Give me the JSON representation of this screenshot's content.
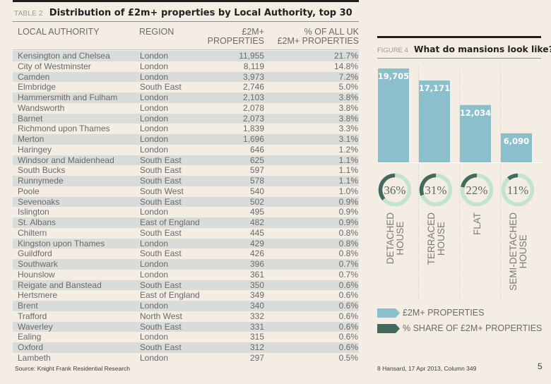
{
  "table": {
    "label": "TABLE 2",
    "title": "Distribution of £2m+ properties by Local Authority, top 30",
    "headers": {
      "local_authority": "LOCAL AUTHORITY",
      "region": "REGION",
      "count_line1": "£2M+",
      "count_line2": "PROPERTIES",
      "pct_line1": "% OF ALL UK",
      "pct_line2": "£2M+ PROPERTIES"
    },
    "rows": [
      {
        "authority": "Kensington and Chelsea",
        "region": "London",
        "count": "11,955",
        "pct": "21.7%"
      },
      {
        "authority": "City of Westminster",
        "region": "London",
        "count": "8,119",
        "pct": "14.8%"
      },
      {
        "authority": "Camden",
        "region": "London",
        "count": "3,973",
        "pct": "7.2%"
      },
      {
        "authority": "Elmbridge",
        "region": "South East",
        "count": "2,746",
        "pct": "5.0%"
      },
      {
        "authority": "Hammersmith and Fulham",
        "region": "London",
        "count": "2,103",
        "pct": "3.8%"
      },
      {
        "authority": "Wandsworth",
        "region": "London",
        "count": "2,078",
        "pct": "3.8%"
      },
      {
        "authority": "Barnet",
        "region": "London",
        "count": "2,073",
        "pct": "3.8%"
      },
      {
        "authority": "Richmond upon Thames",
        "region": "London",
        "count": "1,839",
        "pct": "3.3%"
      },
      {
        "authority": "Merton",
        "region": "London",
        "count": "1,696",
        "pct": "3.1%"
      },
      {
        "authority": "Haringey",
        "region": "London",
        "count": "646",
        "pct": "1.2%"
      },
      {
        "authority": "Windsor and Maidenhead",
        "region": "South East",
        "count": "625",
        "pct": "1.1%"
      },
      {
        "authority": "South Bucks",
        "region": "South East",
        "count": "597",
        "pct": "1.1%"
      },
      {
        "authority": "Runnymede",
        "region": "South East",
        "count": "578",
        "pct": "1.1%"
      },
      {
        "authority": "Poole",
        "region": "South West",
        "count": "540",
        "pct": "1.0%"
      },
      {
        "authority": "Sevenoaks",
        "region": "South East",
        "count": "502",
        "pct": "0.9%"
      },
      {
        "authority": "Islington",
        "region": "London",
        "count": "495",
        "pct": "0.9%"
      },
      {
        "authority": "St. Albans",
        "region": "East of England",
        "count": "482",
        "pct": "0.9%"
      },
      {
        "authority": "Chiltern",
        "region": "South East",
        "count": "445",
        "pct": "0.8%"
      },
      {
        "authority": "Kingston upon Thames",
        "region": "London",
        "count": "429",
        "pct": "0.8%"
      },
      {
        "authority": "Guildford",
        "region": "South East",
        "count": "426",
        "pct": "0.8%"
      },
      {
        "authority": "Southwark",
        "region": "London",
        "count": "396",
        "pct": "0.7%"
      },
      {
        "authority": "Hounslow",
        "region": "London",
        "count": "361",
        "pct": "0.7%"
      },
      {
        "authority": "Reigate and Banstead",
        "region": "South East",
        "count": "350",
        "pct": "0.6%"
      },
      {
        "authority": "Hertsmere",
        "region": "East of England",
        "count": "349",
        "pct": "0.6%"
      },
      {
        "authority": "Brent",
        "region": "London",
        "count": "340",
        "pct": "0.6%"
      },
      {
        "authority": "Trafford",
        "region": "North West",
        "count": "332",
        "pct": "0.6%"
      },
      {
        "authority": "Waverley",
        "region": "South East",
        "count": "331",
        "pct": "0.6%"
      },
      {
        "authority": "Ealing",
        "region": "London",
        "count": "315",
        "pct": "0.6%"
      },
      {
        "authority": "Oxford",
        "region": "South East",
        "count": "312",
        "pct": "0.6%"
      },
      {
        "authority": "Lambeth",
        "region": "London",
        "count": "297",
        "pct": "0.5%"
      }
    ],
    "source": "Source: Knight Frank Residential Research"
  },
  "figure": {
    "label": "FIGURE 4",
    "title": "What do mansions look like?",
    "footnote": "8 Hansard, 17 Apr 2013, Column 349",
    "page_number": "5"
  },
  "colors": {
    "bar": "#8cbfcc",
    "share_dark": "#436b5d",
    "share_light": "#c3e2d2",
    "background": "#f3ede4"
  },
  "chart_data": {
    "type": "bar",
    "title": "What do mansions look like?",
    "categories": [
      {
        "line1": "DETACHED",
        "line2": "HOUSE"
      },
      {
        "line1": "TERRACED",
        "line2": "HOUSE"
      },
      {
        "line1": "FLAT",
        "line2": ""
      },
      {
        "line1": "SEMI-DETACHED",
        "line2": "HOUSE"
      }
    ],
    "category_names": [
      "Detached house",
      "Terraced house",
      "Flat",
      "Semi-detached house"
    ],
    "series": [
      {
        "name": "£2M+ PROPERTIES",
        "values": [
          19705,
          17171,
          12034,
          6090
        ],
        "labels": [
          "19,705",
          "17,171",
          "12,034",
          "6,090"
        ]
      },
      {
        "name": "% SHARE OF £2M+ PROPERTIES",
        "values": [
          36,
          31,
          22,
          11
        ],
        "labels": [
          "36%",
          "31%",
          "22%",
          "11%"
        ]
      }
    ],
    "ylim": [
      0,
      19705
    ],
    "grid": false,
    "legend": [
      {
        "name": "£2M+ PROPERTIES"
      },
      {
        "name": "% SHARE OF £2M+ PROPERTIES"
      }
    ],
    "legend_position": "bottom-left"
  }
}
